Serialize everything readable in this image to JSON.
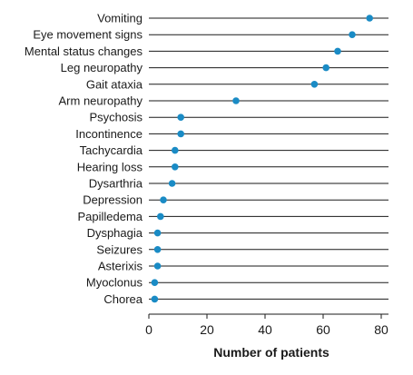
{
  "chart_data": {
    "type": "scatter",
    "categories": [
      "Vomiting",
      "Eye movement signs",
      "Mental status changes",
      "Leg neuropathy",
      "Gait ataxia",
      "Arm neuropathy",
      "Psychosis",
      "Incontinence",
      "Tachycardia",
      "Hearing loss",
      "Dysarthria",
      "Depression",
      "Papilledema",
      "Dysphagia",
      "Seizures",
      "Asterixis",
      "Myoclonus",
      "Chorea"
    ],
    "values": [
      76,
      70,
      65,
      61,
      57,
      30,
      11,
      11,
      9,
      9,
      8,
      5,
      4,
      3,
      3,
      3,
      2,
      2
    ],
    "xlabel": "Number of patients",
    "ylabel": "",
    "xlim": [
      0,
      80
    ],
    "xticks": [
      0,
      20,
      40,
      60,
      80
    ],
    "grid": "horizontal lines per category",
    "legend": "none",
    "colors": {
      "marker": "#1a8bc5",
      "line": "#1a1a1a",
      "text": "#1a1a1a"
    }
  }
}
